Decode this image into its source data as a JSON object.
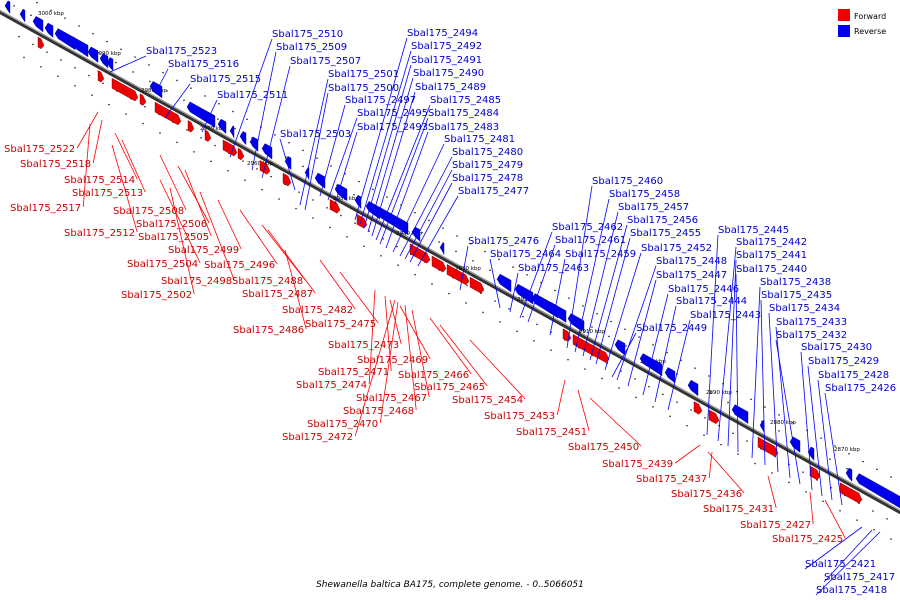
{
  "legend": {
    "forward_label": "Forward",
    "reverse_label": "Reverse",
    "forward_color": "#ee0000",
    "reverse_color": "#0000ee"
  },
  "caption": "Shewanella baltica BA175, complete genome. - 0..5066051",
  "ruler_labels": [
    "3000 kbp",
    "2990 kbp",
    "2980 kbp",
    "2970 kbp",
    "2960 kbp",
    "2950 kbp",
    "2940 kbp",
    "2930 kbp",
    "2920 kbp",
    "2910 kbp",
    "2900 kbp",
    "2890 kbp",
    "2880 kbp",
    "2870 kbp"
  ],
  "reverse_genes": [
    "Sbal175_2523",
    "Sbal175_2516",
    "Sbal175_2515",
    "Sbal175_2511",
    "Sbal175_2510",
    "Sbal175_2509",
    "Sbal175_2507",
    "Sbal175_2501",
    "Sbal175_2500",
    "Sbal175_2503",
    "Sbal175_2494",
    "Sbal175_2492",
    "Sbal175_2491",
    "Sbal175_2490",
    "Sbal175_2489",
    "Sbal175_2497",
    "Sbal175_2485",
    "Sbal175_2495",
    "Sbal175_2484",
    "Sbal175_2493",
    "Sbal175_2483",
    "Sbal175_2481",
    "Sbal175_2480",
    "Sbal175_2479",
    "Sbal175_2478",
    "Sbal175_2477",
    "Sbal175_2476",
    "Sbal175_2460",
    "Sbal175_2458",
    "Sbal175_2457",
    "Sbal175_2462",
    "Sbal175_2456",
    "Sbal175_2461",
    "Sbal175_2455",
    "Sbal175_2452",
    "Sbal175_2464",
    "Sbal175_2459",
    "Sbal175_2463",
    "Sbal175_2448",
    "Sbal175_2447",
    "Sbal175_2446",
    "Sbal175_2444",
    "Sbal175_2443",
    "Sbal175_2449",
    "Sbal175_2445",
    "Sbal175_2442",
    "Sbal175_2441",
    "Sbal175_2440",
    "Sbal175_2438",
    "Sbal175_2435",
    "Sbal175_2434",
    "Sbal175_2433",
    "Sbal175_2432",
    "Sbal175_2430",
    "Sbal175_2429",
    "Sbal175_2428",
    "Sbal175_2426",
    "Sbal175_2421",
    "Sbal175_2417",
    "Sbal175_2418"
  ],
  "forward_genes": [
    "Sbal175_2522",
    "Sbal175_2518",
    "Sbal175_2514",
    "Sbal175_2513",
    "Sbal175_2517",
    "Sbal175_2508",
    "Sbal175_2506",
    "Sbal175_2512",
    "Sbal175_2505",
    "Sbal175_2499",
    "Sbal175_2504",
    "Sbal175_2496",
    "Sbal175_2498",
    "Sbal175_2488",
    "Sbal175_2502",
    "Sbal175_2487",
    "Sbal175_2482",
    "Sbal175_2475",
    "Sbal175_2486",
    "Sbal175_2473",
    "Sbal175_2469",
    "Sbal175_2471",
    "Sbal175_2466",
    "Sbal175_2474",
    "Sbal175_2465",
    "Sbal175_2467",
    "Sbal175_2454",
    "Sbal175_2468",
    "Sbal175_2453",
    "Sbal175_2470",
    "Sbal175_2472",
    "Sbal175_2451",
    "Sbal175_2450",
    "Sbal175_2439",
    "Sbal175_2437",
    "Sbal175_2436",
    "Sbal175_2431",
    "Sbal175_2427",
    "Sbal175_2425"
  ]
}
